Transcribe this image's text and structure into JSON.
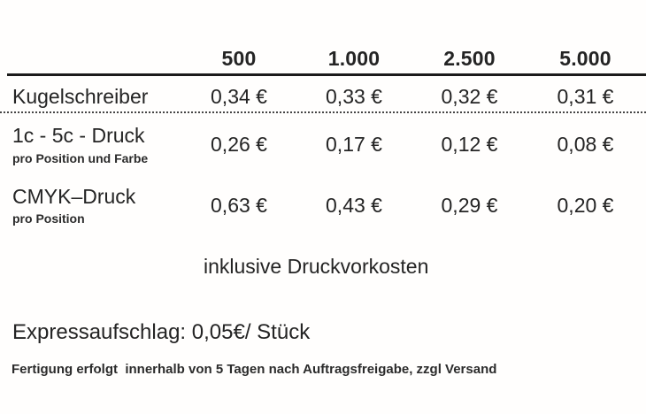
{
  "page": {
    "background": "#fffefd",
    "text_color": "#242424",
    "rule_color": "#1b1b1b"
  },
  "pricing_table": {
    "quantity_headers": [
      "500",
      "1.000",
      "2.500",
      "5.000"
    ],
    "rows": [
      {
        "label": "Kugelschreiber",
        "sublabel": "",
        "prices": [
          "0,34 €",
          "0,33 €",
          "0,32 €",
          "0,31 €"
        ]
      },
      {
        "label": "1c - 5c - Druck",
        "sublabel": "pro Position und Farbe",
        "prices": [
          "0,26 €",
          "0,17 €",
          "0,12 €",
          "0,08 €"
        ]
      },
      {
        "label": "CMYK–Druck",
        "sublabel": "pro Position",
        "prices": [
          "0,63 €",
          "0,43 €",
          "0,29 €",
          "0,20 €"
        ]
      }
    ],
    "note": "inklusive Druckvorkosten"
  },
  "express_note": "Expressaufschlag: 0,05€/ Stück",
  "production_note": "Fertigung erfolgt  innerhalb von 5 Tagen nach Auftragsfreigabe, zzgl Versand"
}
